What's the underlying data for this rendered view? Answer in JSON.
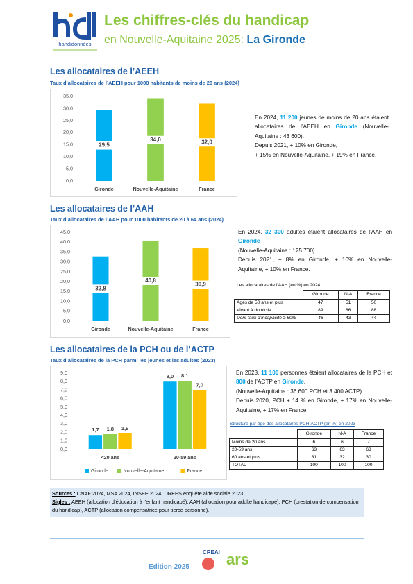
{
  "header": {
    "title": "Les chiffres-clés du handicap",
    "subtitle": "en Nouvelle-Aquitaine 2025:",
    "place": "La Gironde",
    "logo_caption": "handidonnées"
  },
  "sections": [
    {
      "heading": "Les allocataires de l’AEEH",
      "chart_data": {
        "type": "bar",
        "title": "Taux d’allocataires de l’AEEH pour 1000 habitants de moins de 20 ans (2024)",
        "categories": [
          "Gironde",
          "Nouvelle-Aquitaine",
          "France"
        ],
        "values": [
          29.5,
          34.0,
          32.0
        ],
        "value_labels": [
          "29,5",
          "34,0",
          "32,0"
        ],
        "colors": [
          "#00b0f0",
          "#92d050",
          "#ffc000"
        ],
        "ylim": [
          0,
          35
        ],
        "yticks": [
          {
            "value": 0,
            "label": "0,0"
          },
          {
            "value": 5,
            "label": "5,0"
          },
          {
            "value": 10,
            "label": "10,0"
          },
          {
            "value": 15,
            "label": "15,0"
          },
          {
            "value": 20,
            "label": "20,0"
          },
          {
            "value": 25,
            "label": "25,0"
          },
          {
            "value": 30,
            "label": "30,0"
          },
          {
            "value": 35,
            "label": "35,0"
          }
        ],
        "grid": false
      },
      "paragraphs": [
        [
          {
            "text": "En 2024, "
          },
          {
            "text": "11 200",
            "emphasis": true
          },
          {
            "text": " jeunes de moins de 20 ans étaient allocataires de l’AEEH en "
          },
          {
            "text": "Gironde",
            "emphasis": true
          },
          {
            "text": " (Nouvelle-Aquitaine : 43 600)."
          }
        ],
        [
          {
            "text": "Depuis 2021, + 10% en Gironde,"
          }
        ],
        [
          {
            "text": "+ 15% en Nouvelle-Aquitaine, + 19% en France."
          }
        ]
      ]
    },
    {
      "heading": "Les allocataires de l’AAH",
      "chart_data": {
        "type": "bar",
        "title": "Taux d’allocataires de l’AAH pour 1000 habitants de 20 à 64 ans (2024)",
        "categories": [
          "Gironde",
          "Nouvelle-Aquitaine",
          "France"
        ],
        "values": [
          32.8,
          40.8,
          36.9
        ],
        "value_labels": [
          "32,8",
          "40,8",
          "36,9"
        ],
        "colors": [
          "#00b0f0",
          "#92d050",
          "#ffc000"
        ],
        "ylim": [
          0,
          45
        ],
        "yticks": [
          {
            "value": 0,
            "label": "0,0"
          },
          {
            "value": 5,
            "label": "5,0"
          },
          {
            "value": 10,
            "label": "10,0"
          },
          {
            "value": 15,
            "label": "15,0"
          },
          {
            "value": 20,
            "label": "20,0"
          },
          {
            "value": 25,
            "label": "25,0"
          },
          {
            "value": 30,
            "label": "30,0"
          },
          {
            "value": 35,
            "label": "35,0"
          },
          {
            "value": 40,
            "label": "40,0"
          },
          {
            "value": 45,
            "label": "45,0"
          }
        ],
        "grid": false
      },
      "paragraphs": [
        [
          {
            "text": "En 2024, "
          },
          {
            "text": "32 300",
            "emphasis": true
          },
          {
            "text": " adultes étaient allocataires de l’AAH en "
          },
          {
            "text": "Gironde",
            "emphasis": true
          }
        ],
        [
          {
            "text": "(Nouvelle-Aquitaine : 125 700)"
          }
        ],
        [
          {
            "text": "Depuis 2021, + 8% en Gironde, + 10% en Nouvelle-Aquitaine, + 10% en France."
          }
        ]
      ],
      "table": {
        "title": "Les allocataires de l’AAH (en %) en 2024",
        "columns": [
          "Gironde",
          "N-A",
          "France"
        ],
        "rows": [
          {
            "label": "Agés de 50 ans et plus",
            "values": [
              47,
              51,
              50
            ]
          },
          {
            "label": "Vivant à domicile",
            "values": [
              89,
              86,
              88
            ]
          },
          {
            "label": "Dont taux d’incapacité ≥ 80%",
            "values": [
              46,
              43,
              44
            ],
            "italic": true
          }
        ]
      }
    },
    {
      "heading": "Les allocataires de la PCH ou de l’ACTP",
      "chart_data": {
        "type": "bar",
        "title": "Taux d’allocataires de la PCH parmi les jeunes et les adultes (2023)",
        "categories": [
          "<20 ans",
          "20-59 ans"
        ],
        "series": [
          {
            "name": "Gironde",
            "color": "#00b0f0",
            "values": [
              1.7,
              8.0
            ],
            "value_labels": [
              "1,7",
              "8,0"
            ]
          },
          {
            "name": "Nouvelle-Aquitaine",
            "color": "#92d050",
            "values": [
              1.8,
              8.1
            ],
            "value_labels": [
              "1,8",
              "8,1"
            ]
          },
          {
            "name": "France",
            "color": "#ffc000",
            "values": [
              1.9,
              7.0
            ],
            "value_labels": [
              "1,9",
              "7,0"
            ]
          }
        ],
        "ylim": [
          0,
          9
        ],
        "yticks": [
          {
            "value": 0,
            "label": "0,0"
          },
          {
            "value": 1,
            "label": "1,0"
          },
          {
            "value": 2,
            "label": "2,0"
          },
          {
            "value": 3,
            "label": "3,0"
          },
          {
            "value": 4,
            "label": "4,0"
          },
          {
            "value": 5,
            "label": "5,0"
          },
          {
            "value": 6,
            "label": "6,0"
          },
          {
            "value": 7,
            "label": "7,0"
          },
          {
            "value": 8,
            "label": "8,0"
          },
          {
            "value": 9,
            "label": "9,0"
          }
        ],
        "grid": false,
        "legend": "bottom"
      },
      "paragraphs": [
        [
          {
            "text": "En 2023, "
          },
          {
            "text": "11 100",
            "emphasis": true
          },
          {
            "text": " personnes étaient allocataires de la PCH et "
          },
          {
            "text": "800",
            "emphasis": true
          },
          {
            "text": " de l’ACTP en "
          },
          {
            "text": "Gironde",
            "emphasis": true
          },
          {
            "text": "."
          }
        ],
        [
          {
            "text": "(Nouvelle-Aquitaine : 36 600 PCH et 3 400 ACTP)."
          }
        ],
        [
          {
            "text": "Depuis 2020, PCH + 14 % en Gironde, + 17% en Nouvelle-Aquitaine, + 17% en France."
          }
        ]
      ],
      "table": {
        "title": "Structure par âge des allocataires PCH-ACTP (en %) en 2023",
        "columns": [
          "Gironde",
          "N-A",
          "France"
        ],
        "rows": [
          {
            "label": "Moins de 20 ans",
            "values": [
              6,
              6,
              7
            ]
          },
          {
            "label": "20-59 ans",
            "values": [
              63,
              63,
              63
            ]
          },
          {
            "label": "60 ans et plus",
            "values": [
              31,
              32,
              30
            ]
          },
          {
            "label": "TOTAL",
            "values": [
              100,
              100,
              100
            ]
          }
        ]
      }
    }
  ],
  "notes": {
    "sources_label": "Sources :",
    "sources_text": " CNAF 2024, MSA 2024, INSEE 2024, DREES enquête aide sociale 2023.",
    "acronyms_label": "Sigles :",
    "acronyms_text": " AEEH (allocation d’éducation à l’enfant handicapé), AAH (allocation pour adulte handicapé), PCH (prestation de compensation du handicap), ACTP (allocation compensatrice pour tierce personne)."
  },
  "footer": {
    "edition": "Edition 2025",
    "logo_creai": "CREAI",
    "logo_ars": "ars"
  }
}
